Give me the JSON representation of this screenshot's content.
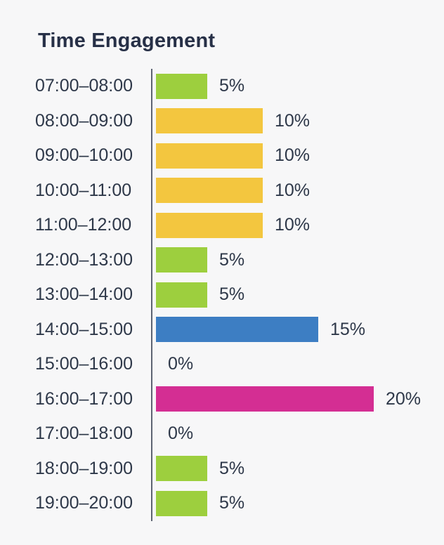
{
  "title": "Time Engagement",
  "colors": {
    "background": "#F7F7F8",
    "text": "#2E3849",
    "title_text": "#273047",
    "axis": "#5D6472",
    "green": "#9DCF3E",
    "yellow": "#F3C63F",
    "blue": "#3D7EC3",
    "magenta": "#D42E93"
  },
  "chart_data": {
    "type": "bar",
    "orientation": "horizontal",
    "title": "Time Engagement",
    "xlabel": "",
    "ylabel": "",
    "xlim": [
      0,
      20
    ],
    "grid": false,
    "legend": false,
    "categories": [
      "07:00–08:00",
      "08:00–09:00",
      "09:00–10:00",
      "10:00–11:00",
      "11:00–12:00",
      "12:00–13:00",
      "13:00–14:00",
      "14:00–15:00",
      "15:00–16:00",
      "16:00–17:00",
      "17:00–18:00",
      "18:00–19:00",
      "19:00–20:00"
    ],
    "values": [
      5,
      10,
      10,
      10,
      10,
      5,
      5,
      15,
      0,
      20,
      0,
      5,
      5
    ],
    "value_labels": [
      "5%",
      "10%",
      "10%",
      "10%",
      "10%",
      "5%",
      "5%",
      "15%",
      "0%",
      "20%",
      "0%",
      "5%",
      "5%"
    ],
    "bar_colors": [
      "#9DCF3E",
      "#F3C63F",
      "#F3C63F",
      "#F3C63F",
      "#F3C63F",
      "#9DCF3E",
      "#9DCF3E",
      "#3D7EC3",
      "none",
      "#D42E93",
      "none",
      "#9DCF3E",
      "#9DCF3E"
    ]
  }
}
